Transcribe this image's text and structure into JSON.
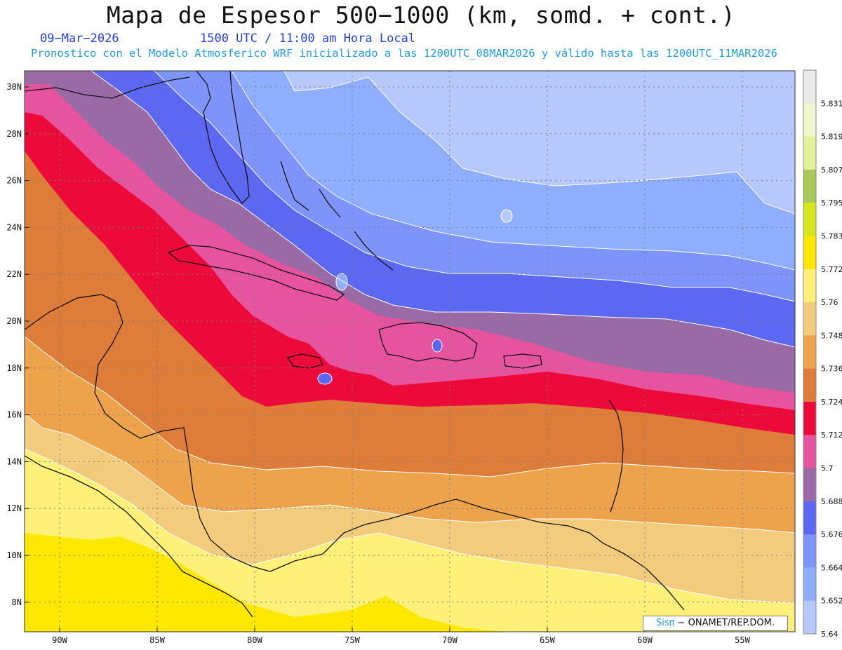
{
  "header": {
    "title": "Mapa de Espesor 500−1000 (km, somd. + cont.)",
    "date": "09−Mar−2026",
    "time": "1500 UTC / 11:00 am Hora Local",
    "model_info": "Pronostico con el Modelo Atmosferico WRF inicializado a las 1200UTC_08MAR2026 y válido hasta las  1200UTC_11MAR2026"
  },
  "map": {
    "lat_labels": [
      "30N",
      "28N",
      "26N",
      "24N",
      "22N",
      "20N",
      "18N",
      "16N",
      "14N",
      "12N",
      "10N",
      "8N"
    ],
    "lon_labels": [
      "90W",
      "85W",
      "80W",
      "75W",
      "70W",
      "65W",
      "60W",
      "55W"
    ],
    "lat_values": [
      30,
      28,
      26,
      24,
      22,
      20,
      18,
      16,
      14,
      12,
      10,
      8
    ],
    "lon_values": [
      -90,
      -85,
      -80,
      -75,
      -70,
      -65,
      -60,
      -55
    ]
  },
  "colorbar": {
    "labels": [
      "5.831",
      "5.819",
      "5.807",
      "5.795",
      "5.783",
      "5.772",
      "5.76",
      "5.748",
      "5.736",
      "5.724",
      "5.712",
      "5.7",
      "5.688",
      "5.676",
      "5.664",
      "5.652",
      "5.64"
    ],
    "colors": [
      "#eaeaea",
      "#f2f6cf",
      "#e3f29a",
      "#a9c85a",
      "#d6e61c",
      "#ffe800",
      "#fff07a",
      "#f2cc7c",
      "#eda34c",
      "#de7c3a",
      "#ec0a3a",
      "#e6549f",
      "#9a6aa7",
      "#5c68f2",
      "#7f94fb",
      "#8faeff",
      "#b7c8fd"
    ]
  },
  "credit": {
    "brand": "Sisπ",
    "text": "− ONAMET/REP.DOM."
  }
}
